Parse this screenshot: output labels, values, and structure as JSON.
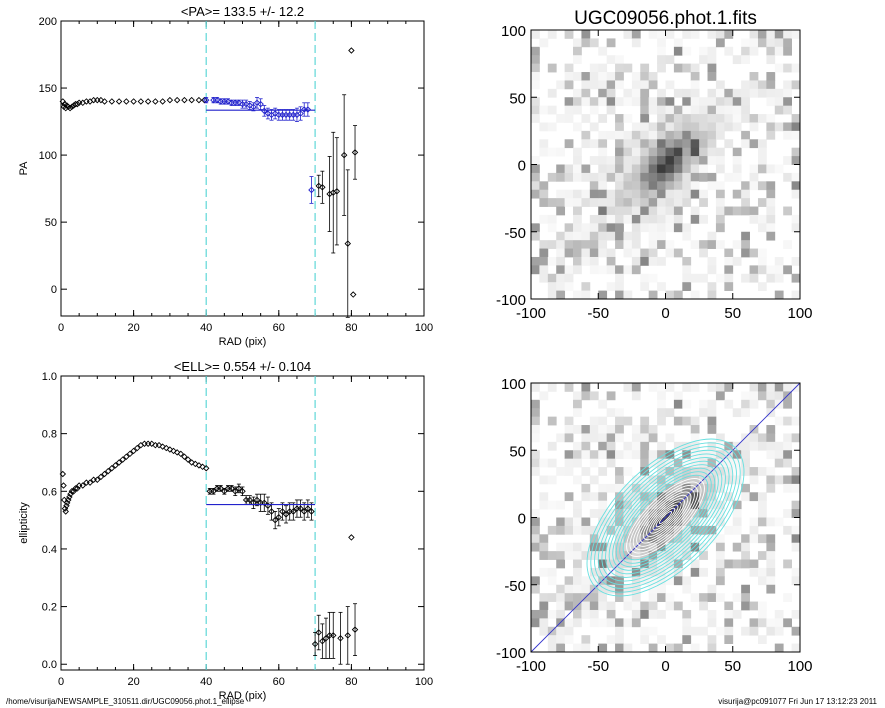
{
  "chart_data": [
    {
      "type": "scatter",
      "title": "<PA>= 133.5 +/-  12.2",
      "xlabel": "RAD (pix)",
      "ylabel": "PA",
      "xlim": [
        0,
        100
      ],
      "ylim": [
        -20,
        200
      ],
      "xticks": [
        0,
        20,
        40,
        60,
        80,
        100
      ],
      "yticks": [
        0,
        50,
        100,
        150,
        200
      ],
      "vlines": [
        40,
        70
      ],
      "mean_line": {
        "x": [
          40,
          70
        ],
        "y": 133.5
      },
      "points_black": [
        [
          0.5,
          140
        ],
        [
          0.8,
          136
        ],
        [
          1.0,
          138
        ],
        [
          1.3,
          135
        ],
        [
          1.6,
          137
        ],
        [
          2.0,
          136
        ],
        [
          2.5,
          135
        ],
        [
          3.0,
          136
        ],
        [
          3.5,
          137
        ],
        [
          4.0,
          138
        ],
        [
          4.5,
          138
        ],
        [
          5.0,
          139
        ],
        [
          6.0,
          139
        ],
        [
          7.0,
          140
        ],
        [
          8.0,
          140
        ],
        [
          9.0,
          141
        ],
        [
          10.0,
          141
        ],
        [
          11.0,
          141
        ],
        [
          12.0,
          140
        ],
        [
          14.0,
          140
        ],
        [
          16.0,
          140
        ],
        [
          18.0,
          140
        ],
        [
          20.0,
          140
        ],
        [
          22.0,
          140
        ],
        [
          24.0,
          140
        ],
        [
          26.0,
          140
        ],
        [
          28.0,
          140
        ],
        [
          30.0,
          141
        ],
        [
          32.0,
          141
        ],
        [
          34.0,
          141
        ],
        [
          36.0,
          141
        ],
        [
          38.0,
          141
        ],
        [
          39.5,
          141
        ]
      ],
      "points_blue": [
        {
          "x": 40,
          "y": 141,
          "err": 2
        },
        {
          "x": 42,
          "y": 141,
          "err": 2
        },
        {
          "x": 43,
          "y": 141,
          "err": 2
        },
        {
          "x": 44,
          "y": 140,
          "err": 2
        },
        {
          "x": 45,
          "y": 140,
          "err": 2
        },
        {
          "x": 46,
          "y": 140,
          "err": 2
        },
        {
          "x": 47,
          "y": 139,
          "err": 2
        },
        {
          "x": 48,
          "y": 139,
          "err": 2
        },
        {
          "x": 49,
          "y": 139,
          "err": 2
        },
        {
          "x": 50,
          "y": 138,
          "err": 3
        },
        {
          "x": 51,
          "y": 138,
          "err": 3
        },
        {
          "x": 52,
          "y": 137,
          "err": 3
        },
        {
          "x": 53,
          "y": 136,
          "err": 3
        },
        {
          "x": 54,
          "y": 139,
          "err": 4
        },
        {
          "x": 55,
          "y": 138,
          "err": 4
        },
        {
          "x": 56,
          "y": 133,
          "err": 4
        },
        {
          "x": 57,
          "y": 131,
          "err": 4
        },
        {
          "x": 58,
          "y": 130,
          "err": 4
        },
        {
          "x": 59,
          "y": 131,
          "err": 4
        },
        {
          "x": 60,
          "y": 130,
          "err": 4
        },
        {
          "x": 61,
          "y": 130,
          "err": 4
        },
        {
          "x": 62,
          "y": 130,
          "err": 4
        },
        {
          "x": 63,
          "y": 130,
          "err": 4
        },
        {
          "x": 64,
          "y": 130,
          "err": 4
        },
        {
          "x": 65,
          "y": 130,
          "err": 5
        },
        {
          "x": 66,
          "y": 131,
          "err": 5
        },
        {
          "x": 67,
          "y": 134,
          "err": 5
        },
        {
          "x": 68,
          "y": 134,
          "err": 5
        },
        {
          "x": 69,
          "y": 74,
          "err": 10
        }
      ],
      "points_outer": [
        {
          "x": 71,
          "y": 77,
          "err": 8
        },
        {
          "x": 72,
          "y": 76,
          "err": 12
        },
        {
          "x": 74,
          "y": 71,
          "err": 28
        },
        {
          "x": 75,
          "y": 72,
          "err": 45
        },
        {
          "x": 76,
          "y": 73,
          "err": 40
        },
        {
          "x": 78,
          "y": 100,
          "err": 45
        },
        {
          "x": 79,
          "y": 34,
          "err": 55
        },
        {
          "x": 80,
          "y": 178,
          "err": 0
        },
        {
          "x": 80.5,
          "y": -4,
          "err": 0
        },
        {
          "x": 81,
          "y": 102,
          "err": 20
        }
      ]
    },
    {
      "type": "scatter",
      "title": "<ELL>= 0.554 +/-  0.104",
      "xlabel": "RAD (pix)",
      "ylabel": "ellipticity",
      "xlim": [
        0,
        100
      ],
      "ylim": [
        -0.02,
        1.0
      ],
      "xticks": [
        0,
        20,
        40,
        60,
        80,
        100
      ],
      "yticks": [
        0.0,
        0.2,
        0.4,
        0.6,
        0.8,
        1.0
      ],
      "vlines": [
        40,
        70
      ],
      "mean_line": {
        "x": [
          40,
          70
        ],
        "y": 0.554
      },
      "points_black": [
        [
          0.5,
          0.66
        ],
        [
          0.7,
          0.62
        ],
        [
          0.9,
          0.57
        ],
        [
          1.1,
          0.54
        ],
        [
          1.3,
          0.53
        ],
        [
          1.5,
          0.55
        ],
        [
          1.7,
          0.56
        ],
        [
          2.0,
          0.57
        ],
        [
          2.3,
          0.58
        ],
        [
          2.6,
          0.59
        ],
        [
          3.0,
          0.6
        ],
        [
          3.5,
          0.6
        ],
        [
          4.0,
          0.61
        ],
        [
          4.5,
          0.61
        ],
        [
          5.0,
          0.62
        ],
        [
          6.0,
          0.62
        ],
        [
          7.0,
          0.63
        ],
        [
          8.0,
          0.63
        ],
        [
          9.0,
          0.64
        ],
        [
          10.0,
          0.64
        ],
        [
          11.0,
          0.65
        ],
        [
          12.0,
          0.66
        ],
        [
          13.0,
          0.67
        ],
        [
          14.0,
          0.68
        ],
        [
          15.0,
          0.69
        ],
        [
          16.0,
          0.7
        ],
        [
          17.0,
          0.71
        ],
        [
          18.0,
          0.72
        ],
        [
          19.0,
          0.73
        ],
        [
          20.0,
          0.74
        ],
        [
          21.0,
          0.75
        ],
        [
          22.0,
          0.76
        ],
        [
          23.0,
          0.765
        ],
        [
          24.0,
          0.765
        ],
        [
          25.0,
          0.765
        ],
        [
          26.0,
          0.76
        ],
        [
          27.0,
          0.76
        ],
        [
          28.0,
          0.755
        ],
        [
          29.0,
          0.75
        ],
        [
          30.0,
          0.745
        ],
        [
          31.0,
          0.74
        ],
        [
          32.0,
          0.735
        ],
        [
          33.0,
          0.73
        ],
        [
          34.0,
          0.72
        ],
        [
          35.0,
          0.71
        ],
        [
          36.0,
          0.7
        ],
        [
          37.0,
          0.695
        ],
        [
          38.0,
          0.69
        ],
        [
          39.0,
          0.685
        ],
        [
          40.0,
          0.68
        ]
      ],
      "points_mid": [
        {
          "x": 41,
          "y": 0.6,
          "err": 0.01
        },
        {
          "x": 42,
          "y": 0.6,
          "err": 0.01
        },
        {
          "x": 43,
          "y": 0.61,
          "err": 0.01
        },
        {
          "x": 44,
          "y": 0.61,
          "err": 0.01
        },
        {
          "x": 45,
          "y": 0.6,
          "err": 0.01
        },
        {
          "x": 46,
          "y": 0.61,
          "err": 0.01
        },
        {
          "x": 47,
          "y": 0.61,
          "err": 0.01
        },
        {
          "x": 48,
          "y": 0.6,
          "err": 0.015
        },
        {
          "x": 49,
          "y": 0.61,
          "err": 0.015
        },
        {
          "x": 50,
          "y": 0.6,
          "err": 0.015
        },
        {
          "x": 51,
          "y": 0.57,
          "err": 0.015
        },
        {
          "x": 52,
          "y": 0.57,
          "err": 0.015
        },
        {
          "x": 53,
          "y": 0.56,
          "err": 0.02
        },
        {
          "x": 54,
          "y": 0.57,
          "err": 0.02
        },
        {
          "x": 55,
          "y": 0.56,
          "err": 0.03
        },
        {
          "x": 56,
          "y": 0.56,
          "err": 0.03
        },
        {
          "x": 57,
          "y": 0.55,
          "err": 0.03
        },
        {
          "x": 58,
          "y": 0.53,
          "err": 0.03
        },
        {
          "x": 59,
          "y": 0.5,
          "err": 0.03
        },
        {
          "x": 60,
          "y": 0.51,
          "err": 0.03
        },
        {
          "x": 61,
          "y": 0.53,
          "err": 0.03
        },
        {
          "x": 62,
          "y": 0.52,
          "err": 0.03
        },
        {
          "x": 63,
          "y": 0.53,
          "err": 0.03
        },
        {
          "x": 64,
          "y": 0.53,
          "err": 0.03
        },
        {
          "x": 65,
          "y": 0.54,
          "err": 0.03
        },
        {
          "x": 66,
          "y": 0.54,
          "err": 0.03
        },
        {
          "x": 67,
          "y": 0.53,
          "err": 0.03
        },
        {
          "x": 68,
          "y": 0.54,
          "err": 0.03
        },
        {
          "x": 69,
          "y": 0.53,
          "err": 0.03
        }
      ],
      "points_outer": [
        {
          "x": 70,
          "y": 0.07,
          "err": 0.04
        },
        {
          "x": 71,
          "y": 0.11,
          "err": 0.06
        },
        {
          "x": 72,
          "y": 0.08,
          "err": 0.06
        },
        {
          "x": 73,
          "y": 0.09,
          "err": 0.07
        },
        {
          "x": 74,
          "y": 0.1,
          "err": 0.08
        },
        {
          "x": 75,
          "y": 0.1,
          "err": 0.08
        },
        {
          "x": 77,
          "y": 0.09,
          "err": 0.09
        },
        {
          "x": 79,
          "y": 0.1,
          "err": 0.1
        },
        {
          "x": 80,
          "y": 0.44,
          "err": 0.0
        },
        {
          "x": 81,
          "y": 0.12,
          "err": 0.09
        }
      ]
    },
    {
      "type": "heatmap",
      "title": "UGC09056.phot.1.fits",
      "xlim": [
        -100,
        100
      ],
      "ylim": [
        -100,
        100
      ],
      "xticks": [
        -100,
        -50,
        0,
        50,
        100
      ],
      "yticks": [
        -100,
        -50,
        0,
        50,
        100
      ],
      "colormap": "grayscale-inverted",
      "galaxy": {
        "center": [
          0,
          0
        ],
        "position_angle_deg": 133.5,
        "ellipticity": 0.554
      }
    },
    {
      "type": "heatmap",
      "title": "",
      "xlim": [
        -100,
        100
      ],
      "ylim": [
        -100,
        100
      ],
      "xticks": [
        -100,
        -50,
        0,
        50,
        100
      ],
      "yticks": [
        -100,
        -50,
        0,
        50,
        100
      ],
      "colormap": "grayscale-inverted",
      "overlay": {
        "contour_color": "#66e0e0",
        "inner_contour_color": "#ffffff",
        "major_axis_color": "#3333cc"
      }
    }
  ],
  "footer": {
    "left": "/home/visurija/NEWSAMPLE_310511.dir/UGC09056.phot.1_ellipse",
    "right": "visurija@pc091077  Fri Jun 17 13:12:23 2011"
  },
  "colors": {
    "cyan": "#5fd7d7",
    "blue": "#2222cc",
    "black": "#000000"
  }
}
